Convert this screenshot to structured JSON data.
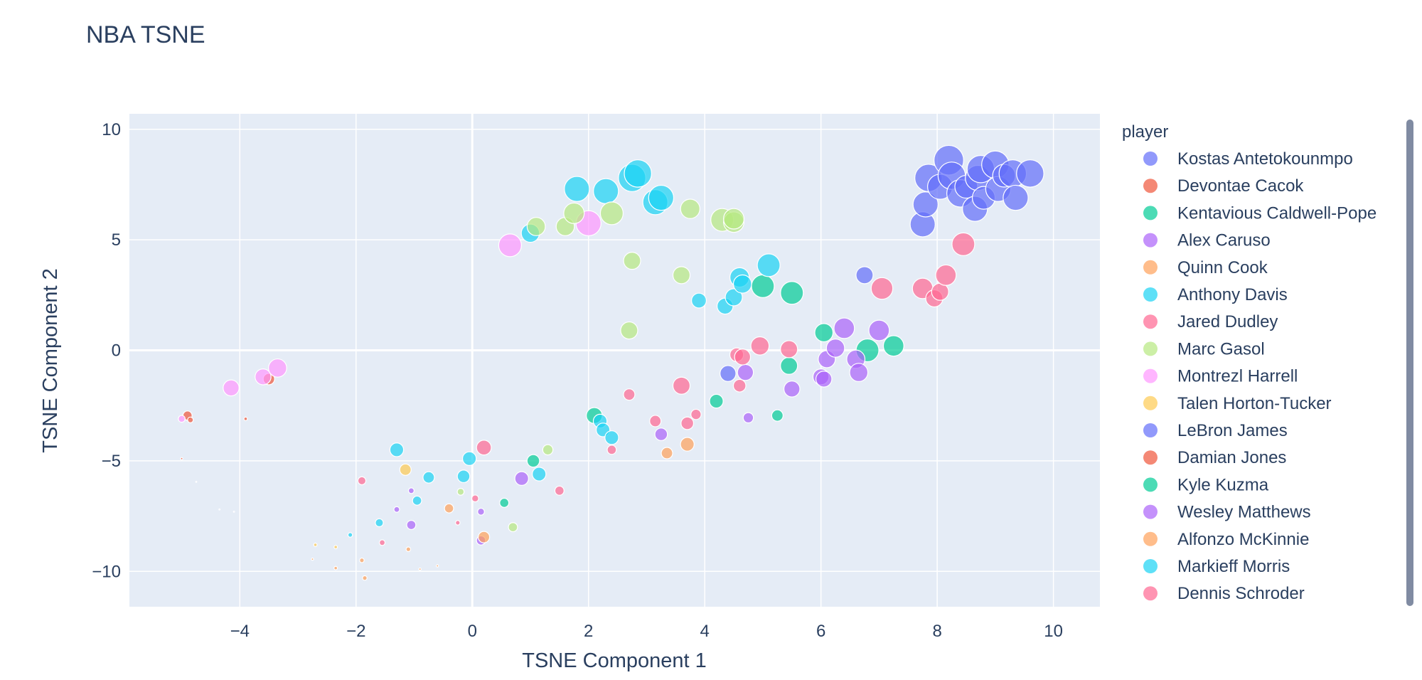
{
  "chart_data": {
    "type": "scatter",
    "title": "NBA TSNE",
    "xlabel": "TSNE Component 1",
    "ylabel": "TSNE Component 2",
    "xlim": [
      -5.9,
      10.8
    ],
    "ylim": [
      -11.6,
      10.7
    ],
    "xticks": [
      -4,
      -2,
      0,
      2,
      4,
      6,
      8,
      10
    ],
    "yticks": [
      -10,
      -5,
      0,
      5,
      10
    ],
    "xtick_labels": [
      "−4",
      "−2",
      "0",
      "2",
      "4",
      "6",
      "8",
      "10"
    ],
    "ytick_labels": [
      "−10",
      "−5",
      "0",
      "5",
      "10"
    ],
    "grid": true,
    "legend_title": "player",
    "legend_position": "right",
    "point_opacity": 0.7,
    "series": [
      {
        "name": "Kostas Antetokounmpo",
        "color": "#636efa",
        "points": []
      },
      {
        "name": "Devontae Cacok",
        "color": "#EF553B",
        "points": [
          [
            -4.9,
            -2.95,
            8
          ],
          [
            -4.85,
            -3.15,
            5
          ],
          [
            -3.5,
            -1.3,
            10
          ]
        ]
      },
      {
        "name": "Kentavious Caldwell-Pope",
        "color": "#00cc96",
        "points": []
      },
      {
        "name": "Alex Caruso",
        "color": "#ab63fa",
        "points": []
      },
      {
        "name": "Quinn Cook",
        "color": "#FFA15A",
        "points": [
          [
            -1.9,
            -9.5,
            4
          ],
          [
            -1.85,
            -10.3,
            4
          ],
          [
            -1.1,
            -9.0,
            4
          ],
          [
            -0.9,
            -9.9,
            2
          ]
        ]
      },
      {
        "name": "Anthony Davis",
        "color": "#19d3f3",
        "points": []
      },
      {
        "name": "Jared Dudley",
        "color": "#FF6692",
        "points": []
      },
      {
        "name": "Marc Gasol",
        "color": "#B6E880",
        "points": []
      },
      {
        "name": "Montrezl Harrell",
        "color": "#FF97FF",
        "points": [
          [
            -5.0,
            -3.1,
            6
          ],
          [
            -4.15,
            -1.7,
            14
          ],
          [
            -3.6,
            -1.2,
            14
          ],
          [
            -3.35,
            -0.8,
            16
          ],
          [
            0.65,
            4.75,
            20
          ],
          [
            2.0,
            5.75,
            22
          ]
        ]
      },
      {
        "name": "Talen Horton-Tucker",
        "color": "#FECB52",
        "points": [
          [
            -2.7,
            -8.8,
            3
          ],
          [
            -2.35,
            -8.9,
            3
          ],
          [
            -1.15,
            -5.4,
            10
          ]
        ]
      },
      {
        "name": "LeBron James",
        "color": "#636efa",
        "points": [
          [
            7.75,
            5.7,
            22
          ],
          [
            7.8,
            6.6,
            22
          ],
          [
            7.85,
            7.8,
            24
          ],
          [
            8.05,
            7.4,
            22
          ],
          [
            8.2,
            8.6,
            26
          ],
          [
            8.25,
            7.9,
            24
          ],
          [
            8.4,
            7.1,
            24
          ],
          [
            8.5,
            7.4,
            20
          ],
          [
            8.65,
            6.4,
            22
          ],
          [
            8.7,
            7.8,
            22
          ],
          [
            8.75,
            8.2,
            24
          ],
          [
            8.8,
            6.9,
            20
          ],
          [
            9.0,
            8.4,
            24
          ],
          [
            9.05,
            7.3,
            22
          ],
          [
            9.15,
            7.9,
            20
          ],
          [
            9.3,
            8.0,
            24
          ],
          [
            9.35,
            6.9,
            22
          ],
          [
            9.6,
            8.0,
            24
          ],
          [
            6.75,
            3.4,
            15
          ],
          [
            4.4,
            -1.05,
            14
          ]
        ]
      },
      {
        "name": "Damian Jones",
        "color": "#EF553B",
        "points": [
          [
            -5.0,
            -4.9,
            2
          ],
          [
            -3.9,
            -3.1,
            3
          ]
        ]
      },
      {
        "name": "Kyle Kuzma",
        "color": "#00cc96",
        "points": [
          [
            1.05,
            -5.0,
            11
          ],
          [
            0.55,
            -6.9,
            8
          ],
          [
            2.1,
            -2.95,
            14
          ],
          [
            4.2,
            -2.3,
            12
          ],
          [
            5.25,
            -2.95,
            10
          ],
          [
            5.0,
            2.9,
            20
          ],
          [
            5.5,
            2.6,
            20
          ],
          [
            6.05,
            0.8,
            16
          ],
          [
            6.8,
            0.0,
            20
          ],
          [
            7.25,
            0.2,
            18
          ],
          [
            5.45,
            -0.7,
            15
          ]
        ]
      },
      {
        "name": "Wesley Matthews",
        "color": "#ab63fa",
        "points": [
          [
            -1.3,
            -7.2,
            5
          ],
          [
            -1.05,
            -6.35,
            5
          ],
          [
            -1.05,
            -7.9,
            8
          ],
          [
            0.15,
            -7.3,
            6
          ],
          [
            0.15,
            -8.6,
            8
          ],
          [
            0.85,
            -5.8,
            12
          ],
          [
            3.25,
            -3.8,
            11
          ],
          [
            4.75,
            -3.05,
            9
          ],
          [
            4.7,
            -1.0,
            14
          ],
          [
            5.5,
            -1.75,
            14
          ],
          [
            6.0,
            -1.2,
            14
          ],
          [
            6.05,
            -1.3,
            14
          ],
          [
            6.1,
            -0.4,
            15
          ],
          [
            6.25,
            0.1,
            16
          ],
          [
            6.4,
            1.0,
            18
          ],
          [
            6.6,
            -0.4,
            16
          ],
          [
            6.65,
            -1.0,
            16
          ],
          [
            7.0,
            0.9,
            18
          ]
        ]
      },
      {
        "name": "Alfonzo McKinnie",
        "color": "#FFA15A",
        "points": [
          [
            -2.35,
            -9.85,
            3
          ],
          [
            -0.4,
            -7.15,
            8
          ],
          [
            0.2,
            -8.45,
            10
          ],
          [
            3.35,
            -4.65,
            10
          ],
          [
            3.7,
            -4.25,
            12
          ]
        ]
      },
      {
        "name": "Markieff Morris",
        "color": "#19d3f3",
        "points": [
          [
            -2.1,
            -8.35,
            4
          ],
          [
            -1.6,
            -7.8,
            7
          ],
          [
            -1.3,
            -4.5,
            12
          ],
          [
            -0.95,
            -6.8,
            8
          ],
          [
            -0.75,
            -5.75,
            10
          ],
          [
            -0.15,
            -5.7,
            11
          ],
          [
            -0.05,
            -4.9,
            12
          ],
          [
            1.15,
            -5.6,
            12
          ],
          [
            2.2,
            -3.2,
            12
          ],
          [
            2.25,
            -3.6,
            12
          ],
          [
            2.4,
            -3.95,
            12
          ],
          [
            1.0,
            5.3,
            16
          ],
          [
            1.8,
            7.3,
            22
          ],
          [
            2.3,
            7.2,
            22
          ],
          [
            2.75,
            7.8,
            24
          ],
          [
            2.85,
            8.0,
            24
          ],
          [
            3.15,
            6.7,
            22
          ],
          [
            3.25,
            6.9,
            22
          ],
          [
            3.9,
            2.25,
            13
          ],
          [
            4.35,
            2.0,
            14
          ],
          [
            4.5,
            2.4,
            15
          ],
          [
            4.6,
            3.3,
            17
          ],
          [
            4.65,
            3.0,
            16
          ],
          [
            5.1,
            3.85,
            20
          ]
        ]
      },
      {
        "name": "Dennis Schroder",
        "color": "#FF6692",
        "points": [
          [
            -1.9,
            -5.9,
            7
          ],
          [
            -1.55,
            -8.7,
            5
          ],
          [
            -0.25,
            -7.8,
            4
          ],
          [
            0.05,
            -6.7,
            6
          ],
          [
            0.2,
            -4.4,
            13
          ],
          [
            1.5,
            -6.35,
            8
          ],
          [
            2.4,
            -4.5,
            8
          ],
          [
            2.7,
            -2.0,
            10
          ],
          [
            3.15,
            -3.2,
            10
          ],
          [
            3.6,
            -1.6,
            15
          ],
          [
            3.7,
            -3.3,
            11
          ],
          [
            3.85,
            -2.9,
            9
          ],
          [
            4.55,
            -0.2,
            12
          ],
          [
            4.6,
            -1.6,
            11
          ],
          [
            4.65,
            -0.3,
            14
          ],
          [
            4.95,
            0.2,
            16
          ],
          [
            5.45,
            0.05,
            15
          ],
          [
            7.05,
            2.8,
            19
          ],
          [
            7.75,
            2.8,
            18
          ],
          [
            7.95,
            2.35,
            15
          ],
          [
            8.05,
            2.65,
            15
          ],
          [
            8.15,
            3.4,
            18
          ],
          [
            8.45,
            4.8,
            20
          ]
        ]
      },
      {
        "name": "Marc Gasol",
        "color": "#B6E880",
        "hidden_legend": true,
        "points": [
          [
            -0.2,
            -6.4,
            6
          ],
          [
            0.7,
            -8.0,
            8
          ],
          [
            1.3,
            -4.5,
            9
          ],
          [
            1.1,
            5.6,
            16
          ],
          [
            1.6,
            5.6,
            16
          ],
          [
            1.75,
            6.2,
            18
          ],
          [
            2.4,
            6.2,
            20
          ],
          [
            2.75,
            4.05,
            15
          ],
          [
            2.7,
            0.9,
            15
          ],
          [
            3.6,
            3.4,
            15
          ],
          [
            3.75,
            6.4,
            17
          ],
          [
            4.3,
            5.9,
            20
          ],
          [
            4.5,
            5.8,
            18
          ],
          [
            4.5,
            5.95,
            18
          ]
        ]
      },
      {
        "name": "Kostas Antetokounmpo",
        "color": "#636efa",
        "hidden_legend": true,
        "points": [
          [
            -4.35,
            -7.2,
            1
          ],
          [
            -4.1,
            -7.3,
            1
          ],
          [
            -4.75,
            -5.95,
            1
          ]
        ]
      },
      {
        "name": "Quinn Cook",
        "color": "#FFA15A",
        "hidden_legend": true,
        "points": [
          [
            -2.75,
            -9.45,
            2
          ],
          [
            -0.6,
            -9.75,
            2
          ]
        ]
      }
    ]
  }
}
